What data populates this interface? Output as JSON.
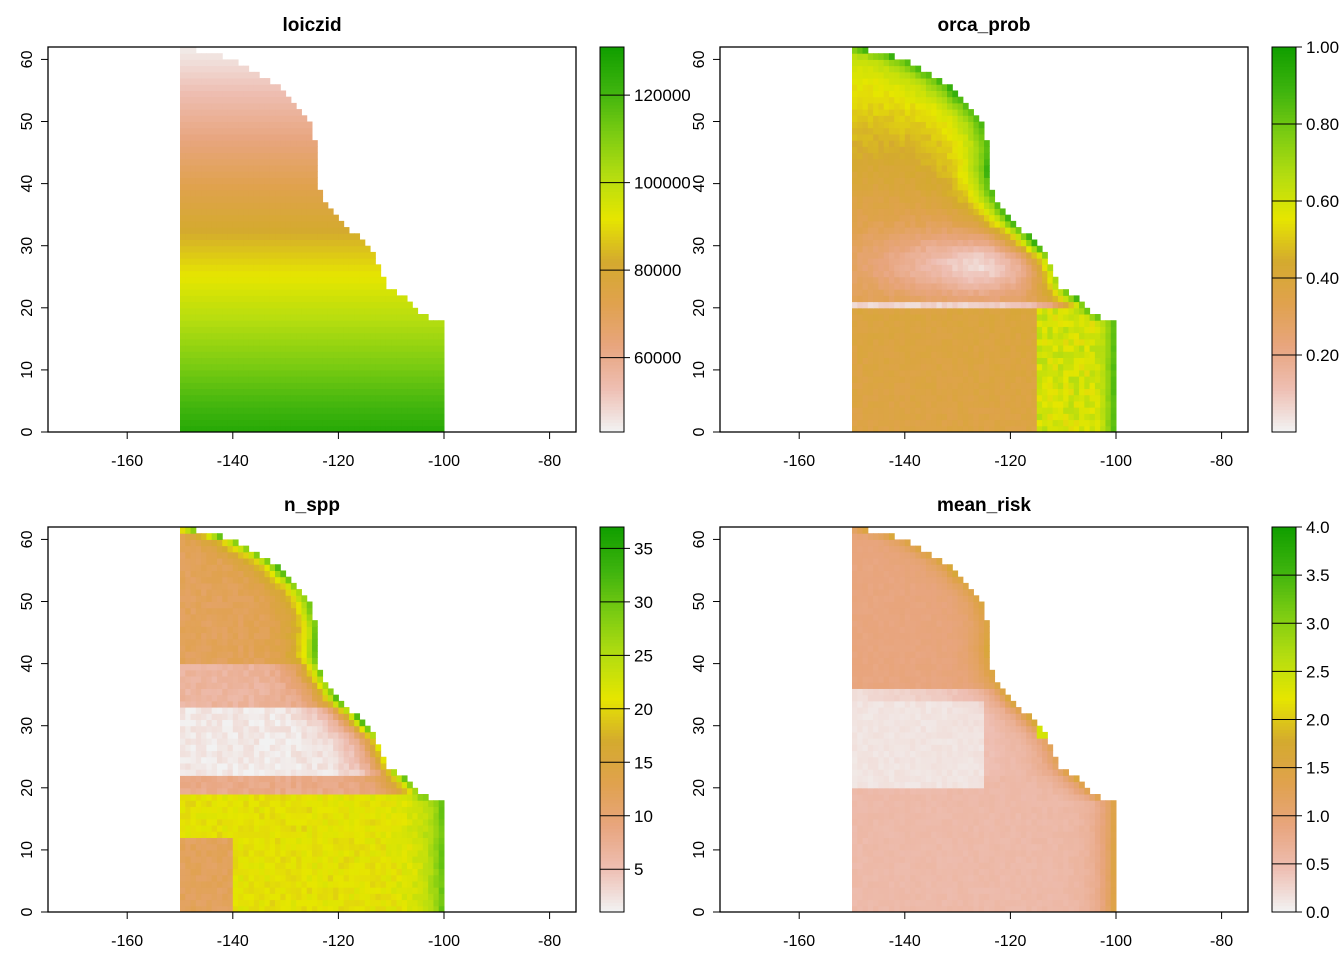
{
  "chart_data": [
    {
      "type": "heatmap",
      "title": "loiczid",
      "x_ticks": [
        -160,
        -140,
        -120,
        -100,
        -80
      ],
      "y_ticks": [
        0,
        10,
        20,
        30,
        40,
        50,
        60
      ],
      "xlim": [
        -175,
        -75
      ],
      "ylim": [
        0,
        62
      ],
      "legend_ticks": [
        "60000",
        "80000",
        "100000",
        "120000"
      ],
      "legend_values": [
        60000,
        80000,
        100000,
        120000
      ],
      "legend_range": [
        43000,
        131000
      ],
      "legend_placement": "right",
      "data_extent": {
        "lon": [
          -150,
          -100
        ],
        "lat": [
          0,
          61.5
        ]
      },
      "pattern": "gradient"
    },
    {
      "type": "heatmap",
      "title": "orca_prob",
      "x_ticks": [
        -160,
        -140,
        -120,
        -100,
        -80
      ],
      "y_ticks": [
        0,
        10,
        20,
        30,
        40,
        50,
        60
      ],
      "xlim": [
        -175,
        -75
      ],
      "ylim": [
        0,
        62
      ],
      "legend_ticks": [
        "0.20",
        "0.40",
        "0.60",
        "0.80",
        "1.00"
      ],
      "legend_values": [
        0.2,
        0.4,
        0.6,
        0.8,
        1.0
      ],
      "legend_range": [
        0.0,
        1.0
      ],
      "legend_placement": "right",
      "data_extent": {
        "lon": [
          -150,
          -100
        ],
        "lat": [
          0,
          61.5
        ]
      },
      "pattern": "orca"
    },
    {
      "type": "heatmap",
      "title": "n_spp",
      "x_ticks": [
        -160,
        -140,
        -120,
        -100,
        -80
      ],
      "y_ticks": [
        0,
        10,
        20,
        30,
        40,
        50,
        60
      ],
      "xlim": [
        -175,
        -75
      ],
      "ylim": [
        0,
        62
      ],
      "legend_ticks": [
        "5",
        "10",
        "15",
        "20",
        "25",
        "30",
        "35"
      ],
      "legend_values": [
        5,
        10,
        15,
        20,
        25,
        30,
        35
      ],
      "legend_range": [
        1,
        37
      ],
      "legend_placement": "right",
      "data_extent": {
        "lon": [
          -150,
          -100
        ],
        "lat": [
          0,
          61.5
        ]
      },
      "pattern": "nspp"
    },
    {
      "type": "heatmap",
      "title": "mean_risk",
      "x_ticks": [
        -160,
        -140,
        -120,
        -100,
        -80
      ],
      "y_ticks": [
        0,
        10,
        20,
        30,
        40,
        50,
        60
      ],
      "xlim": [
        -175,
        -75
      ],
      "ylim": [
        0,
        62
      ],
      "legend_ticks": [
        "0.0",
        "0.5",
        "1.0",
        "1.5",
        "2.0",
        "2.5",
        "3.0",
        "3.5",
        "4.0"
      ],
      "legend_values": [
        0.0,
        0.5,
        1.0,
        1.5,
        2.0,
        2.5,
        3.0,
        3.5,
        4.0
      ],
      "legend_range": [
        0.0,
        4.0
      ],
      "legend_placement": "right",
      "data_extent": {
        "lon": [
          -150,
          -100
        ],
        "lat": [
          0,
          61.5
        ]
      },
      "pattern": "risk"
    }
  ],
  "colors": {
    "palette": [
      "#F2F2F2",
      "#EEBEB2",
      "#E8A57E",
      "#E0A24E",
      "#D4AA2E",
      "#E6E600",
      "#B5DD10",
      "#7CCC12",
      "#3FB40E",
      "#129F00"
    ],
    "no_data": "#FFFFFF"
  }
}
